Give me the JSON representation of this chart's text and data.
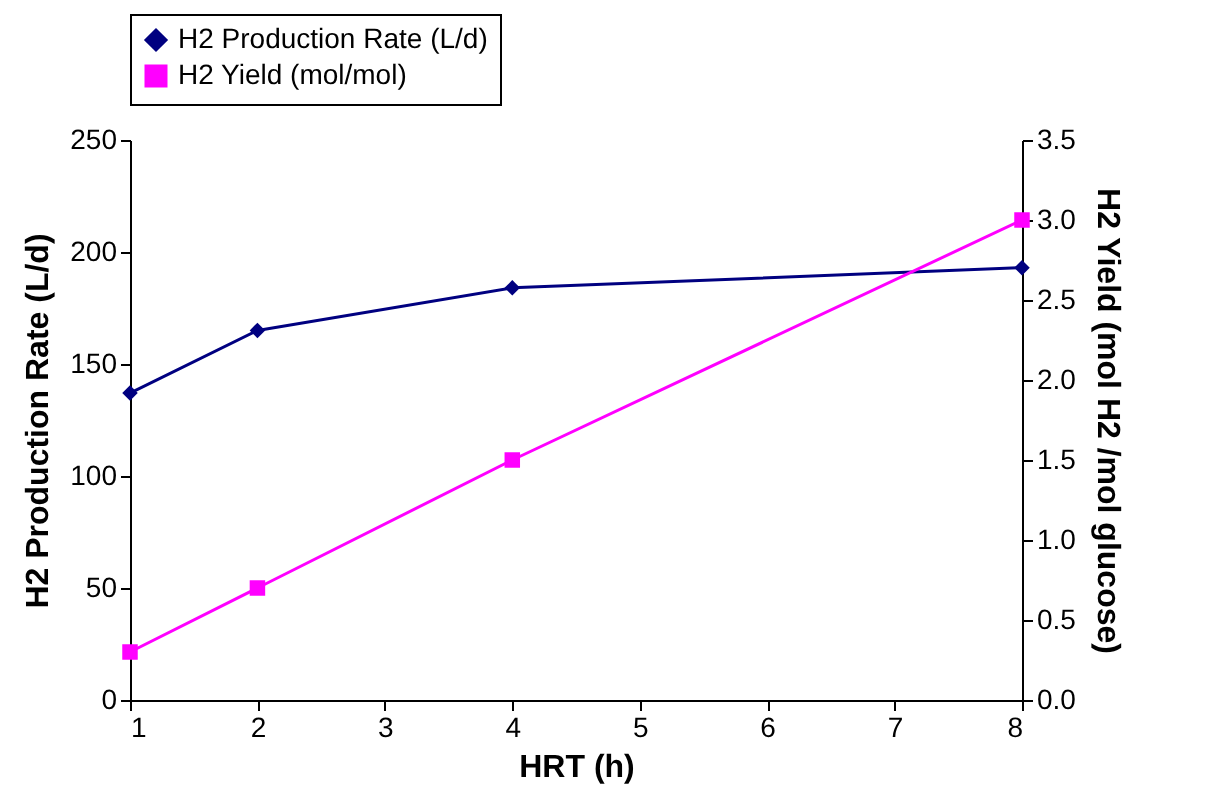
{
  "chart_data": {
    "type": "line",
    "xlabel": "HRT (h)",
    "ylabel": "H2 Production Rate (L/d)",
    "y2label": "H2 Yield (mol H2 /mol glucose)",
    "x": [
      1,
      2,
      4,
      8
    ],
    "xlim": [
      1,
      8
    ],
    "xticks": [
      1,
      2,
      3,
      4,
      5,
      6,
      7,
      8
    ],
    "ylim": [
      0,
      250
    ],
    "yticks": [
      0,
      50,
      100,
      150,
      200,
      250
    ],
    "y2lim": [
      0,
      3.5
    ],
    "y2ticks": [
      {
        "value": 0,
        "label": "0.0"
      },
      {
        "value": 0.5,
        "label": "0.5"
      },
      {
        "value": 1,
        "label": "1.0"
      },
      {
        "value": 1.5,
        "label": "1.5"
      },
      {
        "value": 2,
        "label": "2.0"
      },
      {
        "value": 2.5,
        "label": "2.5"
      },
      {
        "value": 3,
        "label": "3.0"
      },
      {
        "value": 3.5,
        "label": "3.5"
      }
    ],
    "grid": false,
    "legend": "top",
    "series": [
      {
        "name": "H2 Production Rate (L/d)",
        "color": "#000080",
        "marker": "diamond",
        "values": [
          137,
          165,
          184,
          193
        ]
      },
      {
        "name": "H2 Yield (mol/mol)",
        "color": "#ff00ff",
        "marker": "square",
        "axis": "y2",
        "values": [
          0.3,
          0.7,
          1.5,
          3.0
        ]
      }
    ]
  }
}
